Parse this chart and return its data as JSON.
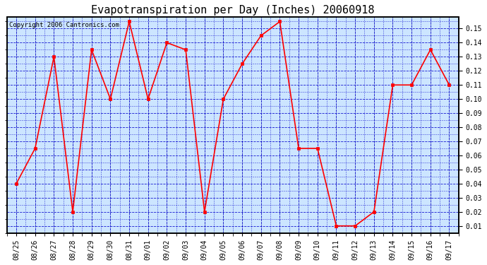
{
  "title": "Evapotranspiration per Day (Inches) 20060918",
  "copyright": "Copyright 2006 Cantronics.com",
  "dates": [
    "08/25",
    "08/26",
    "08/27",
    "08/28",
    "08/29",
    "08/30",
    "08/31",
    "09/01",
    "09/02",
    "09/03",
    "09/04",
    "09/05",
    "09/06",
    "09/07",
    "09/08",
    "09/09",
    "09/10",
    "09/11",
    "09/12",
    "09/13",
    "09/14",
    "09/15",
    "09/16",
    "09/17"
  ],
  "values": [
    0.04,
    0.065,
    0.13,
    0.02,
    0.135,
    0.1,
    0.155,
    0.1,
    0.14,
    0.135,
    0.02,
    0.1,
    0.125,
    0.145,
    0.155,
    0.065,
    0.065,
    0.01,
    0.01,
    0.02,
    0.11,
    0.11,
    0.135,
    0.11
  ],
  "ylim": [
    0.005,
    0.158
  ],
  "yticks": [
    0.01,
    0.02,
    0.03,
    0.04,
    0.05,
    0.06,
    0.07,
    0.08,
    0.09,
    0.1,
    0.11,
    0.12,
    0.13,
    0.14,
    0.15
  ],
  "line_color": "#ff0000",
  "marker_color": "#ff0000",
  "bg_color": "#ffffff",
  "plot_bg_color": "#cce5ff",
  "grid_major_color": "#0000cc",
  "grid_minor_color": "#0000cc",
  "border_color": "#000000",
  "title_fontsize": 11,
  "tick_fontsize": 7,
  "copyright_fontsize": 6.5
}
